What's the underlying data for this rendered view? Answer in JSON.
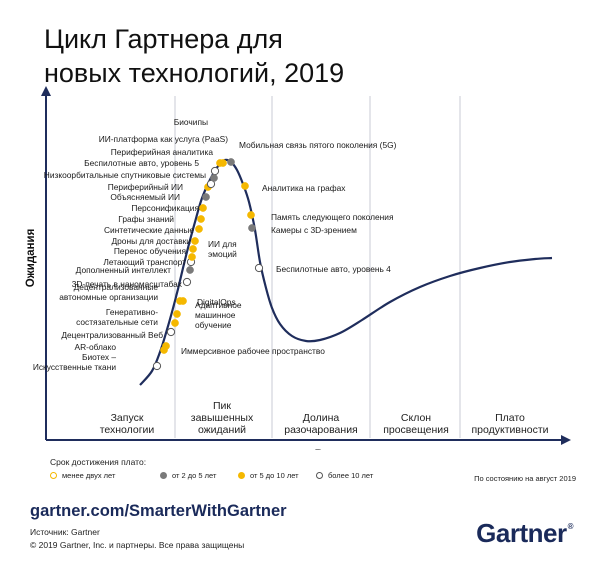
{
  "title": {
    "line1": "Цикл Гартнера для",
    "line2": "новых технологий, 2019"
  },
  "axes": {
    "y_label": "Ожидания",
    "x_label": "Время"
  },
  "phases": [
    [
      "Запуск",
      "технологии"
    ],
    [
      "Пик",
      "завышенных",
      "ожиданий"
    ],
    [
      "Долина",
      "разочарования"
    ],
    [
      "Склон",
      "просвещения"
    ],
    [
      "Плато",
      "продуктивности"
    ]
  ],
  "status_colors": {
    "lt2": "#ffffff",
    "y2to5": "#7a7a7a",
    "y5to10": "#f5b800",
    "gt10": "#ffffff"
  },
  "technologies": [
    {
      "lines": [
        "Биотех –",
        "Искусственные ткани"
      ],
      "status": "gt10"
    },
    {
      "lines": [
        "Иммерсивное рабочее пространство"
      ],
      "status": "y5to10"
    },
    {
      "lines": [
        "AR-облако"
      ],
      "status": "y5to10"
    },
    {
      "lines": [
        "Децентрализованный Веб"
      ],
      "status": "gt10"
    },
    {
      "lines": [
        "Генеративно-",
        "состязательные сети"
      ],
      "status": "y5to10"
    },
    {
      "lines": [
        "Адаптивное",
        "машинное",
        "обучение"
      ],
      "status": "y5to10"
    },
    {
      "lines": [
        "Децентрализованные",
        "автономные организации"
      ],
      "status": "y5to10"
    },
    {
      "lines": [
        "DigitalOps"
      ],
      "status": "y5to10"
    },
    {
      "lines": [
        "3D-печать в наномасштабах"
      ],
      "status": "gt10"
    },
    {
      "lines": [
        "Дополненный интеллект"
      ],
      "status": "y2to5"
    },
    {
      "lines": [
        "Летающий транспорт"
      ],
      "status": "gt10"
    },
    {
      "lines": [
        "ИИ для",
        "эмоций"
      ],
      "status": "y5to10"
    },
    {
      "lines": [
        "Перенос обучения"
      ],
      "status": "y5to10"
    },
    {
      "lines": [
        "Дроны для доставки"
      ],
      "status": "y5to10"
    },
    {
      "lines": [
        "Синтетические данные"
      ],
      "status": "y5to10"
    },
    {
      "lines": [
        "Графы знаний"
      ],
      "status": "y5to10"
    },
    {
      "lines": [
        "Персонификация"
      ],
      "status": "y5to10"
    },
    {
      "lines": [
        "Объясняемый ИИ"
      ],
      "status": "y2to5"
    },
    {
      "lines": [
        "Периферийный ИИ"
      ],
      "status": "y5to10"
    },
    {
      "lines": [
        "Низкоорбитальные спутниковые системы"
      ],
      "status": "gt10"
    },
    {
      "lines": [
        "Беспилотные авто, уровень 5"
      ],
      "status": "gt10"
    },
    {
      "lines": [
        "Периферийная аналитика"
      ],
      "status": "y2to5"
    },
    {
      "lines": [
        "ИИ-платформа как услуга (PaaS)"
      ],
      "status": "y5to10"
    },
    {
      "lines": [
        "Биочипы"
      ],
      "status": "y5to10"
    },
    {
      "lines": [
        "Мобильная связь пятого поколения (5G)"
      ],
      "status": "y2to5"
    },
    {
      "lines": [
        "Аналитика на графах"
      ],
      "status": "y5to10"
    },
    {
      "lines": [
        "Память следующего поколения"
      ],
      "status": "y5to10"
    },
    {
      "lines": [
        "Камеры с 3D-зрением"
      ],
      "status": "y2to5"
    },
    {
      "lines": [
        "Беспилотные авто, уровень 4"
      ],
      "status": "gt10"
    }
  ],
  "legend": {
    "title": "Срок достижения плато:",
    "items": [
      {
        "label": "менее двух лет",
        "color": "#ffffff",
        "border": "#f5b800"
      },
      {
        "label": "от 2 до 5 лет",
        "color": "#7a7a7a",
        "border": "#7a7a7a"
      },
      {
        "label": "от 5 до 10 лет",
        "color": "#f5b800",
        "border": "#f5b800"
      },
      {
        "label": "более 10 лет",
        "color": "#ffffff",
        "border": "#555555"
      }
    ]
  },
  "as_of": "По состоянию на август 2019",
  "footer": {
    "url": "gartner.com/SmarterWithGartner",
    "source": "Источник: Gartner",
    "copyright": "© 2019 Gartner, Inc. и партнеры. Все права защищены",
    "logo": "Gartner",
    "logo_mark": "®"
  }
}
